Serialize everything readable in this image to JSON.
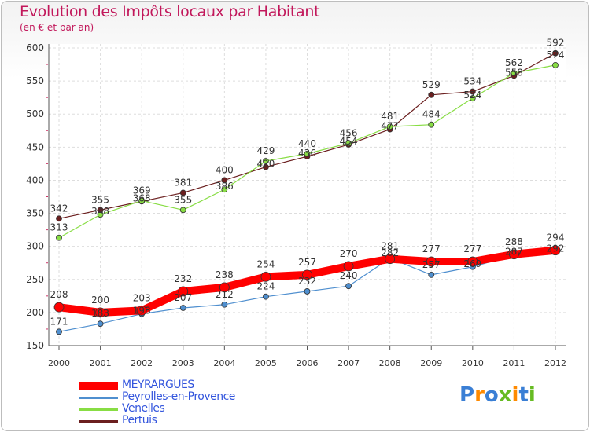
{
  "chart_data": {
    "type": "line",
    "title": "Evolution des Impôts locaux par Habitant",
    "subtitle": "(en € et par an)",
    "xlabel": "",
    "ylabel": "",
    "x": [
      "2000",
      "2001",
      "2002",
      "2003",
      "2004",
      "2005",
      "2006",
      "2007",
      "2008",
      "2009",
      "2010",
      "2011",
      "2012"
    ],
    "ylim": [
      150,
      600
    ],
    "yticks": [
      150,
      200,
      250,
      300,
      350,
      400,
      450,
      500,
      550,
      600
    ],
    "grid": true,
    "legend_position": "bottom-left",
    "series": [
      {
        "name": "Pertuis",
        "color": "#6b1f1f",
        "values": [
          342,
          355,
          368,
          381,
          400,
          420,
          436,
          454,
          477,
          529,
          534,
          558,
          592
        ]
      },
      {
        "name": "Venelles",
        "color": "#88dd44",
        "values": [
          313,
          348,
          369,
          355,
          386,
          429,
          440,
          456,
          481,
          484,
          524,
          562,
          574
        ]
      },
      {
        "name": "Peyrolles-en-Provence",
        "color": "#4f8fcf",
        "values": [
          171,
          183,
          198,
          207,
          212,
          224,
          232,
          240,
          282,
          257,
          269,
          287,
          292
        ]
      },
      {
        "name": "MEYRARGUES",
        "color": "#ff0000",
        "values": [
          208,
          200,
          203,
          232,
          238,
          254,
          257,
          270,
          281,
          277,
          277,
          288,
          294
        ]
      }
    ]
  },
  "legend": {
    "items": [
      {
        "label": "MEYRARGUES",
        "color": "#ff0000"
      },
      {
        "label": "Peyrolles-en-Provence",
        "color": "#4f8fcf"
      },
      {
        "label": "Venelles",
        "color": "#88dd44"
      },
      {
        "label": "Pertuis",
        "color": "#6b1f1f"
      }
    ]
  },
  "logo": {
    "text": "Proxiti",
    "colors": [
      "#3a7fd5",
      "#ff8a00",
      "#3a7fd5",
      "#66bb22",
      "#ff8a00",
      "#3a7fd5",
      "#66bb22"
    ]
  }
}
